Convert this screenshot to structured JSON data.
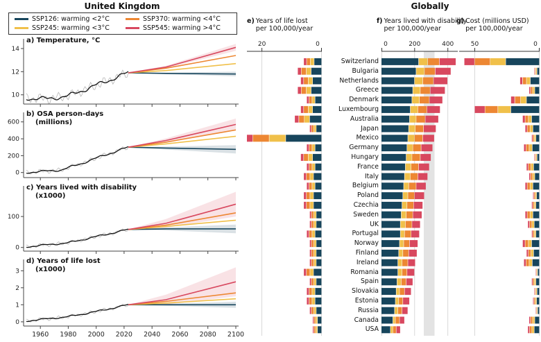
{
  "titles": {
    "left": "United Kingdom",
    "right": "Globally"
  },
  "colors": {
    "SSP126": "#17455c",
    "SSP245": "#f0c04a",
    "SSP370": "#ed8733",
    "SSP545": "#d8485f",
    "hist_gray": "#b5b5b5",
    "hist_black": "#111111",
    "grid": "#cfcfcf",
    "ref_band": "#dedede"
  },
  "legend": {
    "items": [
      {
        "key": "SSP126",
        "label": "SSP126: warming <2°C"
      },
      {
        "key": "SSP245",
        "label": "SSP245: warming <3°C"
      },
      {
        "key": "SSP370",
        "label": "SSP370: warming <4°C"
      },
      {
        "key": "SSP545",
        "label": "SSP545: warming >4°C"
      }
    ]
  },
  "chart_data": [
    {
      "type": "line",
      "id": "a",
      "label_lines": [
        "a) Temperature, °C"
      ],
      "x_range": [
        1948,
        2102
      ],
      "x_ticks": [
        1960,
        1980,
        2000,
        2020,
        2040,
        2060,
        2080,
        2100
      ],
      "x_labels": false,
      "ylim": [
        9.2,
        14.6
      ],
      "yticks": [
        10,
        12,
        14
      ],
      "hist_end": 2023,
      "noise_amp": 0.28,
      "historical": [
        [
          1950,
          9.7
        ],
        [
          1965,
          9.65
        ],
        [
          1980,
          9.9
        ],
        [
          1995,
          10.6
        ],
        [
          2010,
          11.3
        ],
        [
          2023,
          11.9
        ]
      ],
      "series": [
        {
          "name": "SSP126",
          "points": [
            [
              2023,
              11.9
            ],
            [
              2050,
              11.85
            ],
            [
              2100,
              11.8
            ]
          ],
          "band_spread": 0.2
        },
        {
          "name": "SSP245",
          "points": [
            [
              2023,
              11.9
            ],
            [
              2050,
              12.1
            ],
            [
              2100,
              12.7
            ]
          ]
        },
        {
          "name": "SSP370",
          "points": [
            [
              2023,
              11.9
            ],
            [
              2050,
              12.3
            ],
            [
              2100,
              13.4
            ]
          ]
        },
        {
          "name": "SSP545",
          "points": [
            [
              2023,
              11.9
            ],
            [
              2050,
              12.4
            ],
            [
              2100,
              14.1
            ]
          ],
          "band_spread": 0.3
        }
      ]
    },
    {
      "type": "line",
      "id": "b",
      "label_lines": [
        "b) OSA person-days",
        "(millions)"
      ],
      "x_range": [
        1948,
        2102
      ],
      "x_ticks": [
        1960,
        1980,
        2000,
        2020,
        2040,
        2060,
        2080,
        2100
      ],
      "x_labels": false,
      "ylim": [
        -60,
        680
      ],
      "yticks": [
        0,
        200,
        400,
        600
      ],
      "hist_end": 2023,
      "noise_amp": 18,
      "historical": [
        [
          1950,
          0
        ],
        [
          1975,
          30
        ],
        [
          1990,
          110
        ],
        [
          2005,
          200
        ],
        [
          2023,
          300
        ]
      ],
      "series": [
        {
          "name": "SSP126",
          "points": [
            [
              2023,
              300
            ],
            [
              2050,
              290
            ],
            [
              2100,
              275
            ]
          ],
          "band_spread": 50
        },
        {
          "name": "SSP245",
          "points": [
            [
              2023,
              300
            ],
            [
              2050,
              340
            ],
            [
              2100,
              430
            ]
          ]
        },
        {
          "name": "SSP370",
          "points": [
            [
              2023,
              300
            ],
            [
              2050,
              360
            ],
            [
              2100,
              505
            ]
          ]
        },
        {
          "name": "SSP545",
          "points": [
            [
              2023,
              300
            ],
            [
              2050,
              380
            ],
            [
              2100,
              570
            ]
          ],
          "band_spread": 70
        }
      ]
    },
    {
      "type": "line",
      "id": "c",
      "label_lines": [
        "c) Years lived with disability",
        "(x1000)"
      ],
      "x_range": [
        1948,
        2102
      ],
      "x_ticks": [
        1960,
        1980,
        2000,
        2020,
        2040,
        2060,
        2080,
        2100
      ],
      "x_labels": false,
      "ylim": [
        -12,
        190
      ],
      "yticks": [
        0,
        100
      ],
      "hist_end": 2023,
      "noise_amp": 4,
      "historical": [
        [
          1950,
          2
        ],
        [
          1980,
          15
        ],
        [
          2000,
          35
        ],
        [
          2023,
          58
        ]
      ],
      "series": [
        {
          "name": "SSP126",
          "points": [
            [
              2023,
              58
            ],
            [
              2050,
              60
            ],
            [
              2100,
              60
            ]
          ],
          "band_spread": 14
        },
        {
          "name": "SSP245",
          "points": [
            [
              2023,
              58
            ],
            [
              2050,
              68
            ],
            [
              2100,
              88
            ]
          ]
        },
        {
          "name": "SSP370",
          "points": [
            [
              2023,
              58
            ],
            [
              2050,
              72
            ],
            [
              2100,
              112
            ]
          ]
        },
        {
          "name": "SSP545",
          "points": [
            [
              2023,
              58
            ],
            [
              2050,
              78
            ],
            [
              2100,
              140
            ]
          ],
          "band_spread": 40
        }
      ]
    },
    {
      "type": "line",
      "id": "d",
      "label_lines": [
        "d) Years of life lost",
        "(x1000)"
      ],
      "x_range": [
        1948,
        2102
      ],
      "x_ticks": [
        1960,
        1980,
        2000,
        2020,
        2040,
        2060,
        2080,
        2100
      ],
      "x_labels": true,
      "ylim": [
        -0.25,
        3.5
      ],
      "yticks": [
        0,
        1,
        2,
        3
      ],
      "hist_end": 2023,
      "noise_amp": 0.07,
      "historical": [
        [
          1950,
          0.05
        ],
        [
          1980,
          0.3
        ],
        [
          2000,
          0.6
        ],
        [
          2023,
          1.0
        ]
      ],
      "series": [
        {
          "name": "SSP126",
          "points": [
            [
              2023,
              1.0
            ],
            [
              2050,
              1.0
            ],
            [
              2100,
              1.0
            ]
          ],
          "band_spread": 0.18
        },
        {
          "name": "SSP245",
          "points": [
            [
              2023,
              1.0
            ],
            [
              2050,
              1.1
            ],
            [
              2100,
              1.35
            ]
          ]
        },
        {
          "name": "SSP370",
          "points": [
            [
              2023,
              1.0
            ],
            [
              2050,
              1.2
            ],
            [
              2100,
              1.7
            ]
          ]
        },
        {
          "name": "SSP545",
          "points": [
            [
              2023,
              1.0
            ],
            [
              2050,
              1.3
            ],
            [
              2100,
              2.35
            ]
          ],
          "band_spread": 0.85
        }
      ]
    },
    {
      "type": "bar",
      "id": "e",
      "letter": "e)",
      "title_lines": [
        "Years of life lost",
        "per 100,000/year"
      ],
      "reversed": true,
      "xlim": [
        0,
        25
      ],
      "ticks": [
        20,
        0
      ],
      "categories": [
        "Switzerland",
        "Bulgaria",
        "Netherlands",
        "Greece",
        "Denmark",
        "Luxembourg",
        "Australia",
        "Japan",
        "Mexico",
        "Germany",
        "Hungary",
        "France",
        "Italy",
        "Belgium",
        "Poland",
        "Czechia",
        "Sweden",
        "UK",
        "Portugal",
        "Norway",
        "Finland",
        "Ireland",
        "Romania",
        "Spain",
        "Slovakia",
        "Estonia",
        "Russia",
        "Canada",
        "USA"
      ],
      "series": [
        {
          "name": "SSP126",
          "values": [
            2.5,
            3.5,
            3.0,
            3.5,
            2.2,
            3.0,
            4.0,
            1.8,
            12,
            2.2,
            3.0,
            2.2,
            2.7,
            2.2,
            2.7,
            2.7,
            1.8,
            1.8,
            2.2,
            1.8,
            1.8,
            1.8,
            2.7,
            1.8,
            2.2,
            2.2,
            1.8,
            1.4,
            1.4
          ]
        },
        {
          "name": "SSP245",
          "values": [
            1.3,
            1.6,
            1.5,
            1.6,
            1.0,
            1.5,
            1.8,
            0.8,
            5.5,
            1.0,
            1.5,
            1.0,
            1.2,
            1.0,
            1.2,
            1.2,
            0.8,
            0.8,
            1.0,
            0.8,
            0.8,
            0.8,
            1.2,
            0.8,
            1.0,
            1.0,
            0.8,
            0.6,
            0.6
          ]
        },
        {
          "name": "SSP370",
          "values": [
            1.2,
            1.7,
            1.5,
            1.7,
            1.0,
            1.5,
            1.8,
            0.8,
            5.5,
            1.0,
            1.5,
            1.0,
            1.2,
            1.0,
            1.2,
            1.2,
            0.8,
            0.8,
            1.0,
            0.8,
            0.8,
            0.8,
            1.2,
            0.8,
            1.0,
            1.0,
            0.8,
            0.6,
            0.6
          ]
        },
        {
          "name": "SSP545",
          "values": [
            1.0,
            1.2,
            1.0,
            1.2,
            0.8,
            1.0,
            1.4,
            0.6,
            4.0,
            0.8,
            1.0,
            0.8,
            0.9,
            0.8,
            0.9,
            0.9,
            0.6,
            0.6,
            0.8,
            0.6,
            0.6,
            0.6,
            0.9,
            0.6,
            0.8,
            0.8,
            0.6,
            0.4,
            0.4
          ]
        }
      ]
    },
    {
      "type": "bar",
      "id": "f",
      "letter": "f)",
      "title_lines": [
        "Years lived with disability",
        "per 100,000/year"
      ],
      "reversed": false,
      "xlim": [
        0,
        460
      ],
      "ticks": [
        0,
        200,
        400
      ],
      "ref_band": [
        255,
        320
      ],
      "categories": [
        "Switzerland",
        "Bulgaria",
        "Netherlands",
        "Greece",
        "Denmark",
        "Luxembourg",
        "Australia",
        "Japan",
        "Mexico",
        "Germany",
        "Hungary",
        "France",
        "Italy",
        "Belgium",
        "Poland",
        "Czechia",
        "Sweden",
        "UK",
        "Portugal",
        "Norway",
        "Finland",
        "Ireland",
        "Romania",
        "Spain",
        "Slovakia",
        "Estonia",
        "Russia",
        "Canada",
        "USA"
      ],
      "series": [
        {
          "name": "SSP126",
          "values": [
            225,
            210,
            200,
            190,
            185,
            175,
            170,
            165,
            160,
            155,
            150,
            145,
            140,
            135,
            130,
            125,
            120,
            115,
            115,
            110,
            105,
            100,
            100,
            95,
            90,
            85,
            80,
            70,
            55
          ]
        },
        {
          "name": "SSP245",
          "values": [
            55,
            50,
            50,
            45,
            45,
            45,
            40,
            40,
            40,
            35,
            35,
            35,
            35,
            30,
            30,
            30,
            30,
            30,
            25,
            25,
            25,
            25,
            25,
            25,
            20,
            20,
            20,
            15,
            15
          ]
        },
        {
          "name": "SSP370",
          "values": [
            70,
            65,
            65,
            60,
            60,
            55,
            55,
            50,
            50,
            50,
            50,
            45,
            45,
            45,
            40,
            40,
            40,
            40,
            40,
            35,
            35,
            35,
            30,
            30,
            30,
            25,
            25,
            25,
            20
          ]
        },
        {
          "name": "SSP545",
          "values": [
            100,
            95,
            85,
            90,
            80,
            80,
            80,
            75,
            70,
            70,
            65,
            65,
            60,
            60,
            60,
            55,
            55,
            50,
            50,
            50,
            50,
            45,
            45,
            40,
            40,
            40,
            35,
            30,
            25
          ]
        }
      ]
    },
    {
      "type": "bar",
      "id": "g",
      "letter": "g)",
      "title_lines": [
        "Cost (millions USD)",
        "per 100,000/year"
      ],
      "reversed": true,
      "xlim": [
        0,
        62
      ],
      "ticks": [
        50,
        0
      ],
      "categories": [
        "Switzerland",
        "Bulgaria",
        "Netherlands",
        "Greece",
        "Denmark",
        "Luxembourg",
        "Australia",
        "Japan",
        "Mexico",
        "Germany",
        "Hungary",
        "France",
        "Italy",
        "Belgium",
        "Poland",
        "Czechia",
        "Sweden",
        "UK",
        "Portugal",
        "Norway",
        "Finland",
        "Ireland",
        "Romania",
        "Spain",
        "Slovakia",
        "Estonia",
        "Russia",
        "Canada",
        "USA"
      ],
      "series": [
        {
          "name": "SSP126",
          "values": [
            26,
            1.8,
            7,
            3.6,
            10,
            22,
            6,
            5,
            2.7,
            5.5,
            1.8,
            4.5,
            3.6,
            5,
            2.2,
            2.7,
            5,
            4,
            2.7,
            6,
            4.5,
            5.5,
            1.4,
            2.7,
            1.8,
            2.2,
            1.4,
            3.6,
            4
          ]
        },
        {
          "name": "SSP245",
          "values": [
            12,
            0.8,
            3,
            1.6,
            4.5,
            10,
            2.5,
            2.2,
            1.2,
            2.4,
            0.8,
            2,
            1.6,
            2.2,
            1,
            1.2,
            2.2,
            1.8,
            1.2,
            2.5,
            2,
            2.4,
            0.6,
            1.2,
            0.8,
            1,
            0.6,
            1.6,
            1.8
          ]
        },
        {
          "name": "SSP370",
          "values": [
            12,
            0.8,
            3,
            1.6,
            4.5,
            10,
            2.5,
            2.2,
            1.2,
            2.4,
            0.8,
            2,
            1.6,
            2.2,
            1,
            1.2,
            2.2,
            1.8,
            1.2,
            2.5,
            2,
            2.4,
            0.6,
            1.2,
            0.8,
            1,
            0.6,
            1.6,
            1.8
          ]
        },
        {
          "name": "SSP545",
          "values": [
            8,
            0.6,
            2,
            1.2,
            3,
            8,
            2,
            1.6,
            0.9,
            1.7,
            0.6,
            1.5,
            1.2,
            1.6,
            0.8,
            0.9,
            1.6,
            1.4,
            0.9,
            2,
            1.5,
            1.7,
            0.4,
            0.9,
            0.6,
            0.8,
            0.4,
            1.2,
            1.4
          ]
        }
      ]
    }
  ]
}
